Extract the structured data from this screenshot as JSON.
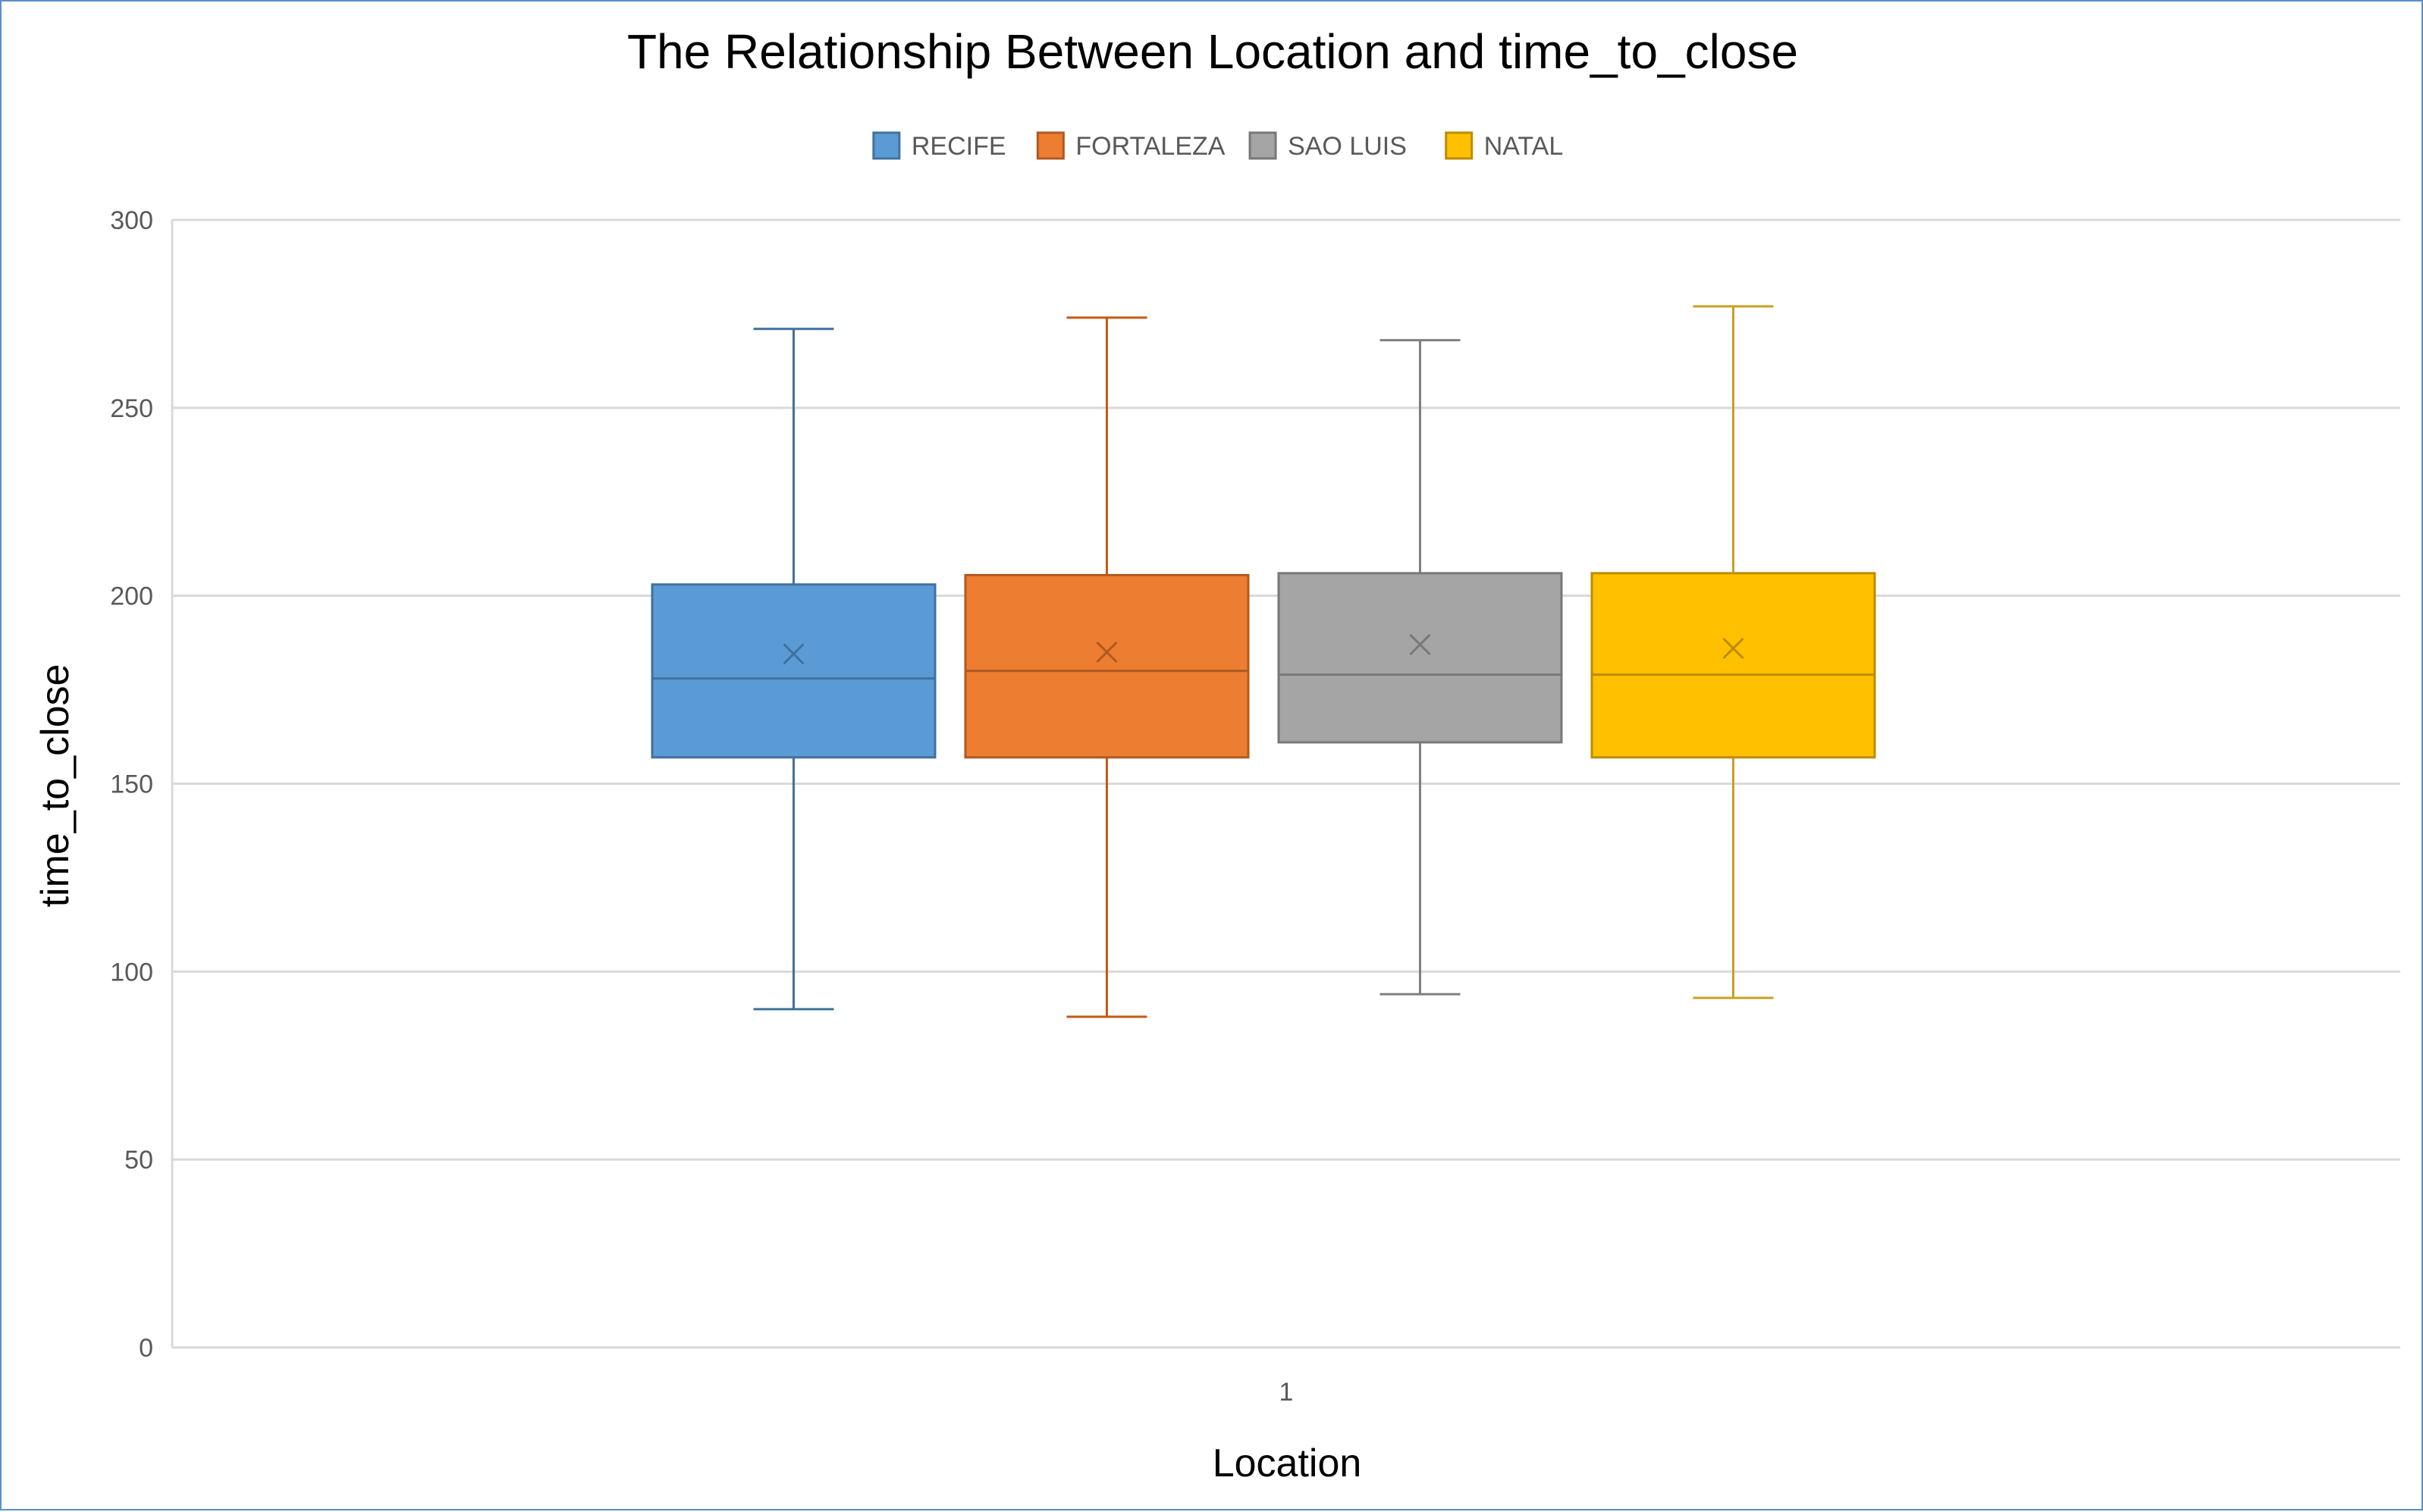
{
  "chart_data": {
    "type": "boxplot",
    "title": "The Relationship Between Location and time_to_close",
    "xlabel": "Location",
    "ylabel": "time_to_close",
    "categories": [
      "1"
    ],
    "ylim": [
      0,
      300
    ],
    "yticks": [
      0,
      50,
      100,
      150,
      200,
      250,
      300
    ],
    "grid": true,
    "legend_position": "top",
    "series": [
      {
        "name": "RECIFE",
        "color": "#5b9bd5",
        "stroke": "#41719c",
        "whisker_color": "#41719c",
        "min": 90,
        "q1": 157,
        "median": 178,
        "q3": 203,
        "max": 271,
        "mean": 184.5
      },
      {
        "name": "FORTALEZA",
        "color": "#ed7d31",
        "stroke": "#ae5a21",
        "whisker_color": "#c55a11",
        "min": 88,
        "q1": 157,
        "median": 180,
        "q3": 205.5,
        "max": 274,
        "mean": 185
      },
      {
        "name": "SAO LUIS",
        "color": "#a5a5a5",
        "stroke": "#787878",
        "whisker_color": "#7f7f7f",
        "min": 94,
        "q1": 161,
        "median": 179,
        "q3": 206,
        "max": 268,
        "mean": 187
      },
      {
        "name": "NATAL",
        "color": "#ffc000",
        "stroke": "#bc8c00",
        "whisker_color": "#c9a020",
        "min": 93,
        "q1": 157,
        "median": 179,
        "q3": 206,
        "max": 277,
        "mean": 186
      }
    ]
  }
}
